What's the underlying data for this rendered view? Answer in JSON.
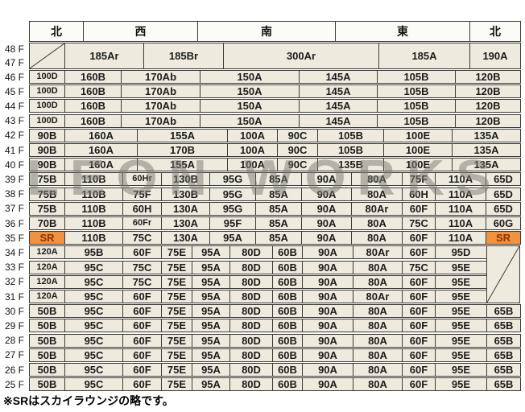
{
  "header": {
    "cells": [
      "北",
      "西",
      "南",
      "東",
      "北"
    ]
  },
  "watermark": {
    "text": "LEON WORKS"
  },
  "footer": {
    "note": "※SRはスカイラウンジの略です。"
  },
  "colors": {
    "cell_bg": "#eeebde",
    "header_bg": "#fbfbf7",
    "border": "#3a3a38",
    "sky_lounge_bg": "#f19240",
    "sky_lounge_text": "#8e3400"
  },
  "rows": [
    {
      "floors": [
        "48 F",
        "47 F"
      ],
      "group": "merged",
      "cells": [
        "",
        "185Ar",
        "185Br",
        "300Ar",
        "185A",
        "190A"
      ]
    },
    {
      "floors": [
        "46 F"
      ],
      "group": "a",
      "cells": [
        "100D",
        "160B",
        "170Ab",
        "150A",
        "145A",
        "105B",
        "120B"
      ]
    },
    {
      "floors": [
        "45 F"
      ],
      "group": "a",
      "cells": [
        "100D",
        "160B",
        "170Ab",
        "150A",
        "145A",
        "105B",
        "120B"
      ]
    },
    {
      "floors": [
        "44 F"
      ],
      "group": "a",
      "cells": [
        "100D",
        "160B",
        "170Ab",
        "150A",
        "145A",
        "105B",
        "120B"
      ]
    },
    {
      "floors": [
        "43 F"
      ],
      "group": "a",
      "cells": [
        "100D",
        "160B",
        "170Ab",
        "150A",
        "145A",
        "105B",
        "120B"
      ]
    },
    {
      "floors": [
        "42 F"
      ],
      "group": "b",
      "cells": [
        "90B",
        "160A",
        "155A",
        "100A",
        "90C",
        "105B",
        "100E",
        "135A"
      ]
    },
    {
      "floors": [
        "41 F"
      ],
      "group": "b",
      "cells": [
        "90B",
        "160A",
        "170B",
        "100A",
        "90C",
        "105B",
        "100E",
        "135A"
      ]
    },
    {
      "floors": [
        "40 F"
      ],
      "group": "b",
      "cells": [
        "90B",
        "160A",
        "155A",
        "100A",
        "90C",
        "135B",
        "100E",
        "135A"
      ]
    },
    {
      "floors": [
        "39 F"
      ],
      "group": "c",
      "cells": [
        "75B",
        "110B",
        "60Hr",
        "130B",
        "95G",
        "85A",
        "90A",
        "80A",
        "75F",
        "110A",
        "65D"
      ]
    },
    {
      "floors": [
        "38 F"
      ],
      "group": "c",
      "cells": [
        "75B",
        "110B",
        "75F",
        "130B",
        "95G",
        "85A",
        "90A",
        "80A",
        "60H",
        "110A",
        "65D"
      ]
    },
    {
      "floors": [
        "37 F"
      ],
      "group": "c",
      "cells": [
        "75B",
        "110B",
        "60H",
        "130A",
        "95G",
        "85A",
        "90A",
        "80Ar",
        "60F",
        "110A",
        "65D"
      ]
    },
    {
      "floors": [
        "36 F"
      ],
      "group": "c",
      "cells": [
        "70B",
        "110B",
        "60Fr",
        "130A",
        "95F",
        "85A",
        "90A",
        "80A",
        "75C",
        "110A",
        "60G"
      ]
    },
    {
      "floors": [
        "35 F"
      ],
      "group": "c",
      "cells": [
        "SR",
        "110B",
        "75C",
        "130A",
        "95A",
        "85A",
        "90A",
        "80A",
        "60F",
        "110A",
        "SR"
      ]
    },
    {
      "floors": [
        "34 F"
      ],
      "group": "d",
      "cells": [
        "120A",
        "95B",
        "60F",
        "75E",
        "95A",
        "80D",
        "60B",
        "90A",
        "80Ar",
        "60F",
        "95D"
      ]
    },
    {
      "floors": [
        "33 F"
      ],
      "group": "d",
      "cells": [
        "120A",
        "95C",
        "75C",
        "75E",
        "95A",
        "80D",
        "60B",
        "90A",
        "80A",
        "75C",
        "95E"
      ]
    },
    {
      "floors": [
        "32 F"
      ],
      "group": "d",
      "cells": [
        "120A",
        "95C",
        "75C",
        "75E",
        "95A",
        "80D",
        "60B",
        "90A",
        "80A",
        "60F",
        "95E"
      ]
    },
    {
      "floors": [
        "31 F"
      ],
      "group": "d",
      "cells": [
        "120A",
        "95C",
        "60F",
        "75E",
        "95A",
        "80D",
        "60B",
        "90A",
        "80Ar",
        "60F",
        "95E"
      ]
    },
    {
      "floors": [
        "30 F"
      ],
      "group": "e",
      "cells": [
        "50B",
        "95C",
        "60F",
        "75E",
        "95A",
        "80D",
        "60B",
        "90A",
        "80A",
        "60F",
        "95E",
        "65B"
      ]
    },
    {
      "floors": [
        "29 F"
      ],
      "group": "e",
      "cells": [
        "50B",
        "95C",
        "60F",
        "75E",
        "95A",
        "80D",
        "60B",
        "90A",
        "80A",
        "60F",
        "95E",
        "65B"
      ]
    },
    {
      "floors": [
        "28 F"
      ],
      "group": "e",
      "cells": [
        "50B",
        "95C",
        "60F",
        "75E",
        "95A",
        "80D",
        "60B",
        "90A",
        "80A",
        "60F",
        "95E",
        "65B"
      ]
    },
    {
      "floors": [
        "27 F"
      ],
      "group": "e",
      "cells": [
        "50B",
        "95C",
        "60F",
        "75E",
        "95A",
        "80D",
        "60B",
        "90A",
        "80A",
        "60F",
        "95E",
        "65B"
      ]
    },
    {
      "floors": [
        "26 F"
      ],
      "group": "e",
      "cells": [
        "50B",
        "95C",
        "60F",
        "75E",
        "95A",
        "80D",
        "60B",
        "90A",
        "80A",
        "60F",
        "95E",
        "65B"
      ]
    },
    {
      "floors": [
        "25 F"
      ],
      "group": "e",
      "cells": [
        "50B",
        "95C",
        "60F",
        "75E",
        "95A",
        "80D",
        "60B",
        "90A",
        "80A",
        "60F",
        "95E",
        "65B"
      ]
    }
  ]
}
